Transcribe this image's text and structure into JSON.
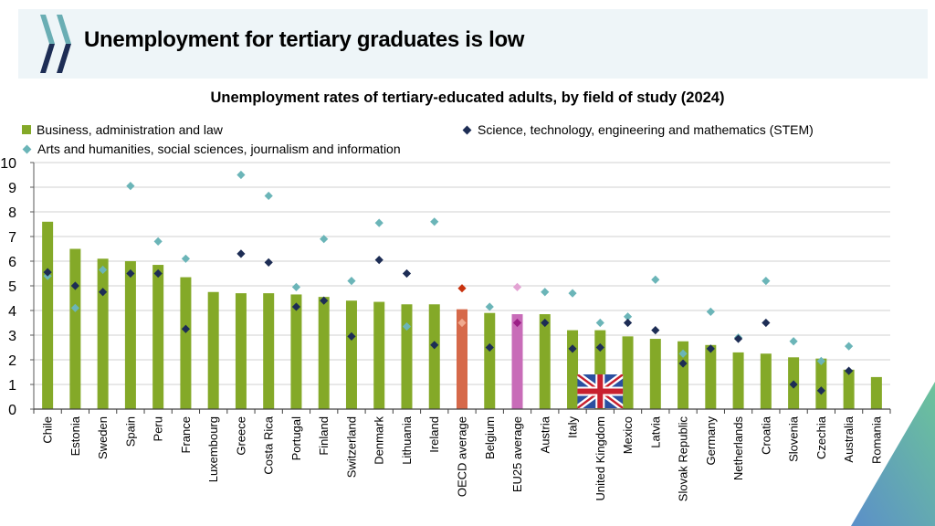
{
  "header": {
    "title": "Unemployment for tertiary graduates is low",
    "logo_icon": "oecd-chevrons-icon"
  },
  "colors": {
    "banner_bg": "#eef5f8",
    "business": "#84a928",
    "stem": "#1d2d55",
    "arts": "#6bb5b8",
    "oecd_bar": "#d6694a",
    "oecd_stem": "#c8320e",
    "oecd_arts": "#f0a98e",
    "eu_bar": "#c86cb8",
    "eu_stem": "#9b1f86",
    "eu_arts": "#e3a3d3",
    "grid": "#d9d9d9"
  },
  "chart_data": {
    "type": "bar",
    "title": "Unemployment rates of tertiary-educated adults, by field of study (2024)",
    "xlabel": "",
    "ylabel": "",
    "ylim": [
      0,
      10
    ],
    "yticks": [
      "0",
      "1",
      "2",
      "3",
      "4",
      "5",
      "6",
      "7",
      "8",
      "9",
      "10"
    ],
    "grid": true,
    "legend_placement": "top",
    "legend": [
      {
        "name": "Business, administration and law",
        "marker": "square"
      },
      {
        "name": "Science, technology, engineering and mathematics (STEM)",
        "marker": "diamond"
      },
      {
        "name": "Arts and humanities, social sciences, journalism and information",
        "marker": "diamond"
      }
    ],
    "categories": [
      "Chile",
      "Estonia",
      "Sweden",
      "Spain",
      "Peru",
      "France",
      "Luxembourg",
      "Greece",
      "Costa Rica",
      "Portugal",
      "Finland",
      "Switzerland",
      "Denmark",
      "Lithuania",
      "Ireland",
      "OECD average",
      "Belgium",
      "EU25 average",
      "Austria",
      "Italy",
      "United Kingdom",
      "Mexico",
      "Latvia",
      "Slovak Republic",
      "Germany",
      "Netherlands",
      "Croatia",
      "Slovenia",
      "Czechia",
      "Australia",
      "Romania"
    ],
    "highlight": {
      "OECD average": "oecd",
      "EU25 average": "eu"
    },
    "series": [
      {
        "name": "Business, administration and law",
        "kind": "bar",
        "values": [
          7.6,
          6.5,
          6.1,
          6.0,
          5.85,
          5.35,
          4.75,
          4.7,
          4.7,
          4.65,
          4.55,
          4.4,
          4.35,
          4.25,
          4.25,
          4.05,
          3.9,
          3.85,
          3.85,
          3.2,
          3.2,
          2.95,
          2.85,
          2.75,
          2.6,
          2.3,
          2.25,
          2.1,
          2.05,
          1.6,
          1.3
        ]
      },
      {
        "name": "Science, technology, engineering and mathematics (STEM)",
        "kind": "diamond",
        "values": [
          5.55,
          5.0,
          4.75,
          5.5,
          5.5,
          3.25,
          null,
          6.3,
          5.95,
          4.15,
          4.4,
          2.95,
          6.05,
          5.5,
          2.6,
          4.9,
          2.5,
          3.5,
          3.5,
          2.45,
          2.5,
          3.5,
          3.2,
          1.85,
          2.45,
          2.85,
          3.5,
          1.0,
          0.75,
          1.55,
          null
        ]
      },
      {
        "name": "Arts and humanities, social sciences, journalism and information",
        "kind": "diamond",
        "values": [
          5.4,
          4.1,
          5.65,
          9.05,
          6.8,
          6.1,
          null,
          9.5,
          8.65,
          4.95,
          6.9,
          5.2,
          7.55,
          3.35,
          7.6,
          3.5,
          4.15,
          4.95,
          4.75,
          4.7,
          3.5,
          3.75,
          5.25,
          2.25,
          3.95,
          2.9,
          5.2,
          2.75,
          1.95,
          2.55,
          null
        ]
      }
    ],
    "annotation": {
      "category": "United Kingdom",
      "icon": "uk-flag-icon"
    }
  }
}
